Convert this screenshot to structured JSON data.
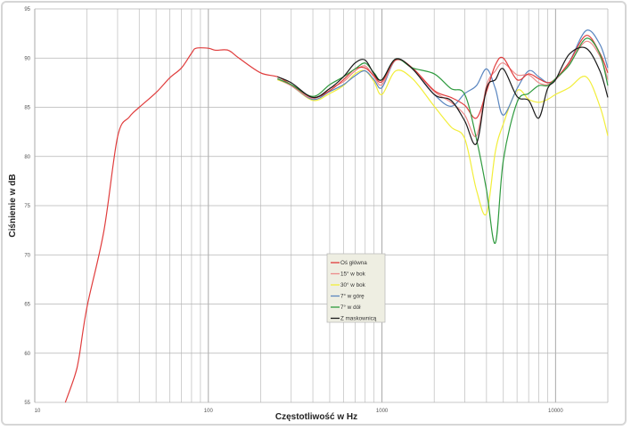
{
  "chart_data": {
    "type": "line",
    "title": "",
    "xlabel": "Częstotliwość w Hz",
    "ylabel": "Ciśnienie w dB",
    "xscale": "log",
    "xlim": [
      10,
      20000
    ],
    "ylim": [
      55,
      95
    ],
    "x_ticks": [
      "10",
      "100",
      "1000",
      "10000"
    ],
    "y_ticks": [
      "55",
      "60",
      "65",
      "70",
      "75",
      "80",
      "85",
      "90",
      "95"
    ],
    "grid": true,
    "legend": "center",
    "series": [
      {
        "name": "Oś główna",
        "color": "#e03c3c",
        "x": [
          15,
          17,
          18,
          20,
          25,
          30,
          35,
          40,
          50,
          60,
          70,
          80,
          85,
          100,
          110,
          130,
          150,
          200,
          250,
          300,
          400,
          500,
          600,
          700,
          800,
          900,
          1000,
          1200,
          1500,
          2000,
          2500,
          3000,
          3500,
          4000,
          4500,
          5000,
          6000,
          7000,
          8000,
          9000,
          10000,
          12000,
          15000,
          18000,
          20000
        ],
        "y": [
          55,
          57.7,
          59.6,
          64.7,
          72.4,
          82,
          84,
          85,
          86.5,
          88,
          89,
          90.5,
          91,
          91,
          90.8,
          90.8,
          90,
          88.5,
          88.1,
          87.3,
          86.0,
          86.7,
          87.8,
          88.9,
          89.0,
          88.2,
          87.6,
          89.8,
          89.0,
          86.7,
          86.0,
          85.2,
          83.9,
          86.6,
          89.3,
          90.0,
          87.8,
          88.4,
          87.9,
          87.5,
          87.9,
          89.6,
          92.3,
          90.5,
          88.5
        ]
      },
      {
        "name": "15° w bok",
        "color": "#ec8a8a",
        "x": [
          250,
          300,
          400,
          500,
          600,
          700,
          800,
          900,
          1000,
          1200,
          1500,
          2000,
          2500,
          3000,
          3500,
          4000,
          4500,
          5000,
          6000,
          7000,
          8000,
          9000,
          10000,
          12000,
          15000,
          18000,
          20000
        ],
        "y": [
          87.9,
          87.2,
          85.9,
          86.9,
          87.6,
          88.7,
          89.2,
          88.1,
          87.3,
          89.8,
          88.9,
          86.6,
          85.5,
          84.2,
          82.1,
          87.2,
          88.7,
          89.5,
          88.3,
          88.3,
          87.5,
          87.3,
          87.8,
          89.4,
          91.7,
          90.2,
          87.8
        ]
      },
      {
        "name": "30° w bok",
        "color": "#f2ee3a",
        "x": [
          250,
          300,
          400,
          500,
          600,
          700,
          800,
          900,
          1000,
          1200,
          1500,
          2000,
          2500,
          3000,
          3500,
          4000,
          4500,
          5000,
          6000,
          7000,
          8000,
          9000,
          10000,
          12000,
          15000,
          18000,
          20000
        ],
        "y": [
          87.8,
          87.2,
          85.7,
          86.4,
          87.2,
          88.4,
          88.7,
          87.6,
          86.3,
          88.7,
          87.9,
          85.1,
          83.0,
          81.8,
          76.6,
          74.2,
          80.5,
          83.3,
          86.7,
          85.8,
          85.5,
          85.8,
          86.3,
          87.0,
          88.1,
          85.1,
          82.1
        ]
      },
      {
        "name": "7° w górę",
        "color": "#5a86c0",
        "x": [
          250,
          300,
          400,
          500,
          600,
          700,
          800,
          900,
          1000,
          1200,
          1500,
          2000,
          2500,
          3000,
          3500,
          4000,
          4500,
          5000,
          6000,
          7000,
          8000,
          9000,
          10000,
          12000,
          15000,
          18000,
          20000
        ],
        "y": [
          87.9,
          87.2,
          85.8,
          86.6,
          87.3,
          88.2,
          88.7,
          87.8,
          87.0,
          89.8,
          88.9,
          86.3,
          85.1,
          86.4,
          87.2,
          88.9,
          86.9,
          84.2,
          86.9,
          88.7,
          88.1,
          87.5,
          87.8,
          89.6,
          92.8,
          91.4,
          89.0
        ]
      },
      {
        "name": "7° w dół",
        "color": "#2e9a3e",
        "x": [
          250,
          300,
          400,
          500,
          600,
          700,
          800,
          900,
          1000,
          1200,
          1500,
          2000,
          2500,
          3000,
          3500,
          4000,
          4500,
          5000,
          6000,
          7000,
          8000,
          9000,
          10000,
          12000,
          15000,
          18000,
          20000
        ],
        "y": [
          87.9,
          87.3,
          86.1,
          87.3,
          88.1,
          88.9,
          89.5,
          88.5,
          87.8,
          89.9,
          89.0,
          88.4,
          86.9,
          86.3,
          81.8,
          76.6,
          71.2,
          79.6,
          85.5,
          86.4,
          87.2,
          87.2,
          87.9,
          89.3,
          92.0,
          90.4,
          87.2
        ]
      },
      {
        "name": "Z maskownicą",
        "color": "#1a1a1a",
        "x": [
          250,
          300,
          400,
          500,
          600,
          700,
          800,
          900,
          1000,
          1200,
          1500,
          2000,
          2500,
          3000,
          3500,
          4000,
          4500,
          5000,
          6000,
          7000,
          8000,
          9000,
          10000,
          12000,
          15000,
          18000,
          20000
        ],
        "y": [
          88.1,
          87.5,
          86.0,
          86.9,
          88.1,
          89.5,
          89.8,
          88.4,
          87.8,
          89.9,
          88.9,
          86.3,
          85.7,
          83.6,
          81.3,
          86.9,
          87.8,
          88.9,
          86.1,
          85.7,
          83.9,
          86.9,
          87.8,
          90.4,
          91.0,
          88.7,
          86.0
        ]
      }
    ]
  }
}
